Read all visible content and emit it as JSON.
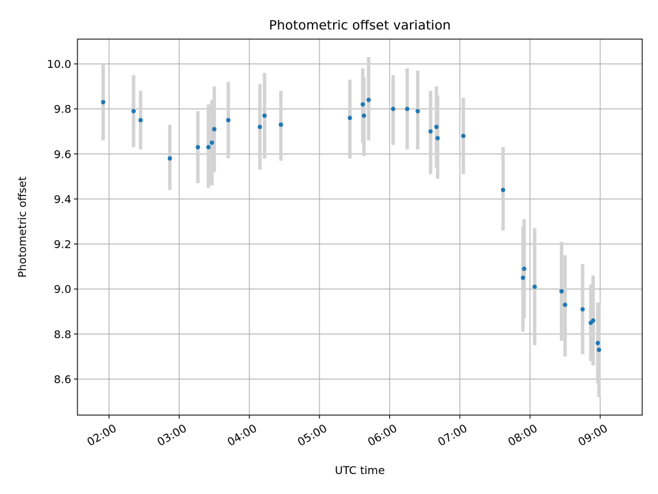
{
  "chart_data": {
    "type": "scatter",
    "title": "Photometric offset variation",
    "xlabel": "UTC time",
    "ylabel": "Photometric offset",
    "x_ticks": [
      "02:00",
      "03:00",
      "04:00",
      "05:00",
      "06:00",
      "07:00",
      "08:00",
      "09:00"
    ],
    "y_ticks": [
      "8.6",
      "8.8",
      "9.0",
      "9.2",
      "9.4",
      "9.6",
      "9.8",
      "10.0"
    ],
    "xlim": [
      "01:33",
      "09:36"
    ],
    "ylim": [
      8.44,
      10.11
    ],
    "grid": true,
    "colors": {
      "point": "#1f77b4",
      "errorbar": "#d3d3d3",
      "grid": "#b0b0b0"
    },
    "points": [
      {
        "x": "01:55",
        "y": 9.83,
        "err_low": 9.66,
        "err_high": 10.0
      },
      {
        "x": "02:21",
        "y": 9.79,
        "err_low": 9.63,
        "err_high": 9.95
      },
      {
        "x": "02:27",
        "y": 9.75,
        "err_low": 9.62,
        "err_high": 9.88
      },
      {
        "x": "02:52",
        "y": 9.58,
        "err_low": 9.44,
        "err_high": 9.73
      },
      {
        "x": "03:16",
        "y": 9.63,
        "err_low": 9.47,
        "err_high": 9.79
      },
      {
        "x": "03:25",
        "y": 9.63,
        "err_low": 9.45,
        "err_high": 9.82
      },
      {
        "x": "03:28",
        "y": 9.65,
        "err_low": 9.46,
        "err_high": 9.84
      },
      {
        "x": "03:30",
        "y": 9.71,
        "err_low": 9.52,
        "err_high": 9.9
      },
      {
        "x": "03:42",
        "y": 9.75,
        "err_low": 9.58,
        "err_high": 9.92
      },
      {
        "x": "04:09",
        "y": 9.72,
        "err_low": 9.53,
        "err_high": 9.91
      },
      {
        "x": "04:13",
        "y": 9.77,
        "err_low": 9.58,
        "err_high": 9.96
      },
      {
        "x": "04:27",
        "y": 9.73,
        "err_low": 9.57,
        "err_high": 9.88
      },
      {
        "x": "05:26",
        "y": 9.76,
        "err_low": 9.58,
        "err_high": 9.93
      },
      {
        "x": "05:37",
        "y": 9.82,
        "err_low": 9.65,
        "err_high": 9.98
      },
      {
        "x": "05:38",
        "y": 9.77,
        "err_low": 9.59,
        "err_high": 9.94
      },
      {
        "x": "05:42",
        "y": 9.84,
        "err_low": 9.66,
        "err_high": 10.03
      },
      {
        "x": "06:03",
        "y": 9.8,
        "err_low": 9.64,
        "err_high": 9.95
      },
      {
        "x": "06:15",
        "y": 9.8,
        "err_low": 9.62,
        "err_high": 9.98
      },
      {
        "x": "06:24",
        "y": 9.79,
        "err_low": 9.62,
        "err_high": 9.97
      },
      {
        "x": "06:35",
        "y": 9.7,
        "err_low": 9.51,
        "err_high": 9.88
      },
      {
        "x": "06:40",
        "y": 9.72,
        "err_low": 9.54,
        "err_high": 9.9
      },
      {
        "x": "06:41",
        "y": 9.67,
        "err_low": 9.49,
        "err_high": 9.86
      },
      {
        "x": "07:03",
        "y": 9.68,
        "err_low": 9.51,
        "err_high": 9.85
      },
      {
        "x": "07:37",
        "y": 9.44,
        "err_low": 9.26,
        "err_high": 9.63
      },
      {
        "x": "07:54",
        "y": 9.05,
        "err_low": 8.81,
        "err_high": 9.28
      },
      {
        "x": "07:55",
        "y": 9.09,
        "err_low": 8.87,
        "err_high": 9.31
      },
      {
        "x": "08:04",
        "y": 9.01,
        "err_low": 8.75,
        "err_high": 9.27
      },
      {
        "x": "08:27",
        "y": 8.99,
        "err_low": 8.77,
        "err_high": 9.21
      },
      {
        "x": "08:30",
        "y": 8.93,
        "err_low": 8.7,
        "err_high": 9.15
      },
      {
        "x": "08:45",
        "y": 8.91,
        "err_low": 8.71,
        "err_high": 9.11
      },
      {
        "x": "08:52",
        "y": 8.85,
        "err_low": 8.68,
        "err_high": 9.02
      },
      {
        "x": "08:54",
        "y": 8.86,
        "err_low": 8.66,
        "err_high": 9.06
      },
      {
        "x": "08:58",
        "y": 8.76,
        "err_low": 8.58,
        "err_high": 8.94
      },
      {
        "x": "08:59",
        "y": 8.73,
        "err_low": 8.52,
        "err_high": 8.94
      }
    ]
  }
}
